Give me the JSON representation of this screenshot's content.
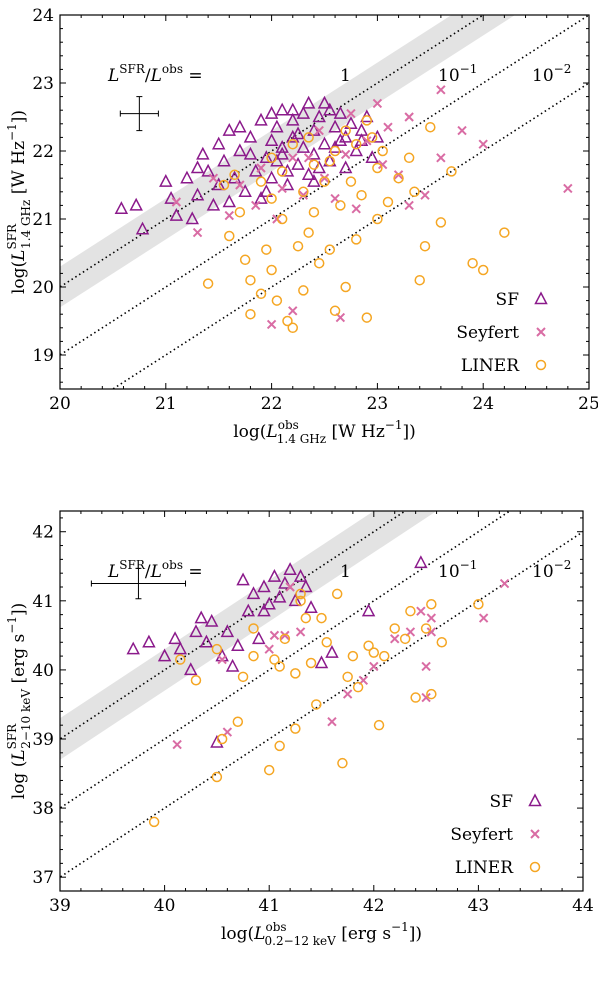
{
  "chart_data": [
    {
      "type": "scatter",
      "xlabel": "log(L_1.4 GHz^obs [W Hz^-1])",
      "ylabel": "log(L_1.4 GHz^SFR [W Hz^-1])",
      "xlim": [
        20,
        25
      ],
      "ylim": [
        18.5,
        24
      ],
      "xticks": [
        "20",
        "21",
        "22",
        "23",
        "24",
        "25"
      ],
      "yticks": [
        "19",
        "20",
        "21",
        "22",
        "23",
        "24"
      ],
      "ratio_label": "L^SFR/L^obs =",
      "line_labels": [
        "1",
        "10^-1",
        "10^-2"
      ],
      "legend_position": "bottom-right",
      "series": [
        {
          "name": "SF",
          "marker": "triangle",
          "color": "#8b1a8b",
          "points": [
            [
              20.58,
              21.15
            ],
            [
              20.72,
              21.2
            ],
            [
              20.78,
              20.85
            ],
            [
              21.0,
              21.55
            ],
            [
              21.05,
              21.3
            ],
            [
              21.1,
              21.05
            ],
            [
              21.2,
              21.6
            ],
            [
              21.25,
              21.0
            ],
            [
              21.3,
              21.35
            ],
            [
              21.35,
              21.95
            ],
            [
              21.4,
              21.7
            ],
            [
              21.45,
              21.2
            ],
            [
              21.5,
              22.1
            ],
            [
              21.5,
              21.5
            ],
            [
              21.55,
              21.85
            ],
            [
              21.6,
              22.3
            ],
            [
              21.65,
              21.6
            ],
            [
              21.7,
              22.0
            ],
            [
              21.75,
              21.4
            ],
            [
              21.8,
              22.2
            ],
            [
              21.85,
              21.7
            ],
            [
              21.9,
              22.45
            ],
            [
              21.9,
              21.3
            ],
            [
              21.95,
              21.9
            ],
            [
              22.0,
              22.15
            ],
            [
              22.0,
              21.6
            ],
            [
              22.05,
              22.35
            ],
            [
              22.1,
              21.95
            ],
            [
              22.1,
              22.6
            ],
            [
              22.15,
              21.5
            ],
            [
              22.2,
              22.2
            ],
            [
              22.2,
              22.45
            ],
            [
              22.25,
              21.8
            ],
            [
              22.3,
              22.05
            ],
            [
              22.3,
              22.55
            ],
            [
              22.35,
              21.65
            ],
            [
              22.4,
              22.3
            ],
            [
              22.4,
              21.95
            ],
            [
              22.45,
              22.5
            ],
            [
              22.5,
              22.1
            ],
            [
              22.5,
              22.7
            ],
            [
              22.55,
              21.85
            ],
            [
              22.6,
              22.35
            ],
            [
              22.6,
              22.05
            ],
            [
              22.65,
              22.55
            ],
            [
              22.7,
              22.2
            ],
            [
              22.75,
              22.4
            ],
            [
              22.8,
              22.0
            ],
            [
              22.85,
              22.3
            ],
            [
              22.9,
              22.5
            ],
            [
              23.0,
              22.2
            ],
            [
              22.95,
              21.9
            ],
            [
              22.7,
              21.75
            ],
            [
              22.45,
              21.75
            ],
            [
              22.15,
              21.7
            ],
            [
              21.95,
              21.4
            ],
            [
              22.2,
              22.6
            ],
            [
              22.0,
              22.55
            ],
            [
              22.35,
              22.7
            ],
            [
              22.55,
              22.6
            ],
            [
              21.3,
              21.75
            ],
            [
              21.6,
              21.25
            ],
            [
              21.8,
              21.95
            ],
            [
              22.05,
              21.85
            ],
            [
              22.25,
              22.25
            ],
            [
              22.65,
              22.15
            ],
            [
              22.85,
              22.15
            ],
            [
              22.4,
              21.55
            ],
            [
              22.1,
              22.05
            ],
            [
              21.7,
              22.35
            ]
          ]
        },
        {
          "name": "Seyfert",
          "marker": "x",
          "color": "#d96ca4",
          "points": [
            [
              21.1,
              21.25
            ],
            [
              21.3,
              20.8
            ],
            [
              21.45,
              21.6
            ],
            [
              21.6,
              21.05
            ],
            [
              21.7,
              21.5
            ],
            [
              21.85,
              21.2
            ],
            [
              21.9,
              21.75
            ],
            [
              22.0,
              19.45
            ],
            [
              22.05,
              21.0
            ],
            [
              22.1,
              21.45
            ],
            [
              22.2,
              19.65
            ],
            [
              22.3,
              21.35
            ],
            [
              22.35,
              21.9
            ],
            [
              22.5,
              21.6
            ],
            [
              22.6,
              21.3
            ],
            [
              22.65,
              19.55
            ],
            [
              22.7,
              21.95
            ],
            [
              22.8,
              21.15
            ],
            [
              22.9,
              22.15
            ],
            [
              23.05,
              21.8
            ],
            [
              23.1,
              22.35
            ],
            [
              23.2,
              21.65
            ],
            [
              23.3,
              21.2
            ],
            [
              23.3,
              22.5
            ],
            [
              23.45,
              21.35
            ],
            [
              23.6,
              21.9
            ],
            [
              23.6,
              22.9
            ],
            [
              23.8,
              22.3
            ],
            [
              24.0,
              22.1
            ],
            [
              24.8,
              21.45
            ],
            [
              22.45,
              22.3
            ],
            [
              22.75,
              22.55
            ],
            [
              23.0,
              22.7
            ],
            [
              22.2,
              21.9
            ]
          ]
        },
        {
          "name": "LINER",
          "marker": "circle",
          "color": "#f5a623",
          "points": [
            [
              21.4,
              20.05
            ],
            [
              21.55,
              21.5
            ],
            [
              21.6,
              20.75
            ],
            [
              21.7,
              21.1
            ],
            [
              21.75,
              20.4
            ],
            [
              21.8,
              20.1
            ],
            [
              21.8,
              19.6
            ],
            [
              21.9,
              19.9
            ],
            [
              21.95,
              20.55
            ],
            [
              22.0,
              21.3
            ],
            [
              22.0,
              20.25
            ],
            [
              22.05,
              19.8
            ],
            [
              22.1,
              21.0
            ],
            [
              22.15,
              19.5
            ],
            [
              22.2,
              19.4
            ],
            [
              22.25,
              20.6
            ],
            [
              22.3,
              21.4
            ],
            [
              22.3,
              19.95
            ],
            [
              22.35,
              20.8
            ],
            [
              22.4,
              21.1
            ],
            [
              22.45,
              20.35
            ],
            [
              22.5,
              21.55
            ],
            [
              22.55,
              20.55
            ],
            [
              22.6,
              19.65
            ],
            [
              22.65,
              21.2
            ],
            [
              22.7,
              20.0
            ],
            [
              22.75,
              21.55
            ],
            [
              22.8,
              20.7
            ],
            [
              22.85,
              21.35
            ],
            [
              22.9,
              19.55
            ],
            [
              23.0,
              21.0
            ],
            [
              23.0,
              21.75
            ],
            [
              23.1,
              21.25
            ],
            [
              23.2,
              21.6
            ],
            [
              23.3,
              21.9
            ],
            [
              23.35,
              21.4
            ],
            [
              23.4,
              20.1
            ],
            [
              23.45,
              20.6
            ],
            [
              23.5,
              22.35
            ],
            [
              23.6,
              20.95
            ],
            [
              23.7,
              21.7
            ],
            [
              23.9,
              20.35
            ],
            [
              24.0,
              20.25
            ],
            [
              24.2,
              20.8
            ],
            [
              22.6,
              22.0
            ],
            [
              22.8,
              22.1
            ],
            [
              22.4,
              21.8
            ],
            [
              22.0,
              21.9
            ],
            [
              22.2,
              22.1
            ],
            [
              22.9,
              22.45
            ],
            [
              21.9,
              21.55
            ],
            [
              22.1,
              21.7
            ],
            [
              22.55,
              21.85
            ],
            [
              23.05,
              22.0
            ],
            [
              21.65,
              21.65
            ],
            [
              22.7,
              22.3
            ],
            [
              22.35,
              22.2
            ],
            [
              22.95,
              22.2
            ]
          ]
        }
      ]
    },
    {
      "type": "scatter",
      "xlabel": "log(L_0.2-12 keV^obs [erg s^-1])",
      "ylabel": "log(L_2-10 keV^SFR [erg s^-1])",
      "xlim": [
        39,
        44
      ],
      "ylim": [
        36.8,
        42.3
      ],
      "xticks": [
        "39",
        "40",
        "41",
        "42",
        "43",
        "44"
      ],
      "yticks": [
        "37",
        "38",
        "39",
        "40",
        "41",
        "42"
      ],
      "ratio_label": "L^SFR/L^obs =",
      "line_labels": [
        "1",
        "10^-1",
        "10^-2"
      ],
      "legend_position": "bottom-right",
      "series": [
        {
          "name": "SF",
          "marker": "triangle",
          "color": "#8b1a8b",
          "points": [
            [
              39.7,
              40.3
            ],
            [
              39.85,
              40.4
            ],
            [
              40.0,
              40.2
            ],
            [
              40.1,
              40.45
            ],
            [
              40.15,
              40.3
            ],
            [
              40.25,
              40.0
            ],
            [
              40.3,
              40.55
            ],
            [
              40.35,
              40.75
            ],
            [
              40.4,
              40.4
            ],
            [
              40.45,
              40.7
            ],
            [
              40.5,
              38.95
            ],
            [
              40.55,
              40.2
            ],
            [
              40.6,
              40.55
            ],
            [
              40.65,
              40.05
            ],
            [
              40.7,
              40.35
            ],
            [
              40.75,
              41.3
            ],
            [
              40.8,
              40.85
            ],
            [
              40.85,
              41.1
            ],
            [
              40.9,
              40.45
            ],
            [
              40.95,
              41.2
            ],
            [
              41.0,
              40.95
            ],
            [
              41.05,
              41.35
            ],
            [
              41.1,
              41.05
            ],
            [
              41.15,
              41.25
            ],
            [
              41.2,
              41.45
            ],
            [
              41.25,
              41.0
            ],
            [
              41.3,
              41.35
            ],
            [
              41.35,
              41.2
            ],
            [
              41.4,
              40.9
            ],
            [
              41.5,
              40.1
            ],
            [
              41.6,
              40.25
            ],
            [
              41.95,
              40.85
            ],
            [
              42.45,
              41.55
            ],
            [
              40.95,
              40.85
            ]
          ]
        },
        {
          "name": "Seyfert",
          "marker": "x",
          "color": "#d96ca4",
          "points": [
            [
              40.12,
              38.92
            ],
            [
              40.6,
              39.1
            ],
            [
              40.55,
              40.15
            ],
            [
              41.0,
              40.3
            ],
            [
              41.05,
              40.5
            ],
            [
              41.15,
              40.5
            ],
            [
              41.2,
              41.2
            ],
            [
              41.3,
              40.55
            ],
            [
              41.6,
              39.25
            ],
            [
              41.75,
              39.65
            ],
            [
              41.9,
              39.85
            ],
            [
              42.0,
              40.05
            ],
            [
              42.2,
              40.45
            ],
            [
              42.35,
              40.55
            ],
            [
              42.45,
              40.85
            ],
            [
              42.5,
              40.05
            ],
            [
              42.55,
              40.75
            ],
            [
              42.5,
              39.6
            ],
            [
              42.55,
              40.55
            ],
            [
              43.05,
              40.75
            ],
            [
              43.25,
              41.25
            ]
          ]
        },
        {
          "name": "LINER",
          "marker": "circle",
          "color": "#f5a623",
          "points": [
            [
              39.9,
              37.8
            ],
            [
              40.15,
              40.15
            ],
            [
              40.3,
              39.85
            ],
            [
              40.5,
              38.45
            ],
            [
              40.5,
              40.3
            ],
            [
              40.55,
              39.0
            ],
            [
              40.7,
              39.25
            ],
            [
              40.75,
              39.9
            ],
            [
              40.85,
              40.2
            ],
            [
              41.0,
              38.55
            ],
            [
              41.05,
              40.15
            ],
            [
              41.1,
              38.9
            ],
            [
              41.15,
              40.45
            ],
            [
              41.25,
              39.15
            ],
            [
              41.3,
              41.1
            ],
            [
              41.35,
              40.75
            ],
            [
              41.45,
              39.5
            ],
            [
              41.5,
              40.75
            ],
            [
              41.65,
              41.1
            ],
            [
              41.7,
              38.65
            ],
            [
              41.75,
              39.9
            ],
            [
              41.8,
              40.2
            ],
            [
              41.85,
              39.75
            ],
            [
              41.95,
              40.35
            ],
            [
              42.05,
              39.2
            ],
            [
              42.0,
              40.25
            ],
            [
              42.2,
              40.6
            ],
            [
              42.3,
              40.45
            ],
            [
              42.35,
              40.85
            ],
            [
              42.4,
              39.6
            ],
            [
              42.55,
              40.95
            ],
            [
              42.55,
              39.65
            ],
            [
              42.65,
              40.4
            ],
            [
              43.0,
              40.95
            ],
            [
              41.4,
              40.1
            ],
            [
              41.1,
              40.05
            ],
            [
              40.85,
              40.6
            ],
            [
              41.25,
              39.95
            ],
            [
              41.55,
              40.4
            ],
            [
              42.5,
              40.6
            ],
            [
              41.3,
              41.0
            ],
            [
              42.1,
              40.2
            ]
          ]
        }
      ]
    }
  ]
}
